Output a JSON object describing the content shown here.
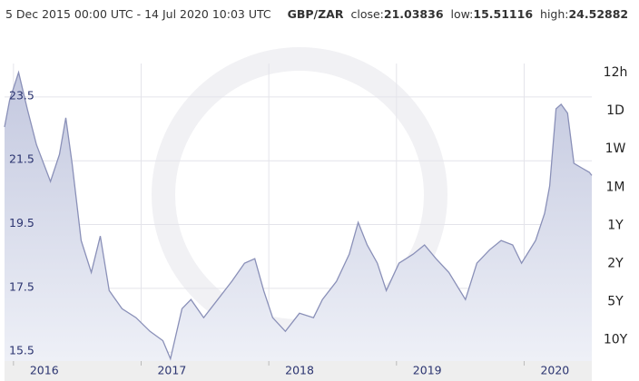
{
  "header": {
    "range": "5 Dec 2015 00:00 UTC - 14 Jul 2020 10:03 UTC",
    "pair": "GBP/ZAR",
    "close_label": "close:",
    "close": "21.03836",
    "low_label": "low:",
    "low": "15.51116",
    "high_label": "high:",
    "high": "24.52882"
  },
  "ui": {
    "range_buttons": [
      "12h",
      "1D",
      "1W",
      "1M",
      "1Y",
      "2Y",
      "5Y",
      "10Y"
    ]
  },
  "chart_data": {
    "type": "area",
    "color": "#8a90b8",
    "grid": true,
    "x": [
      2015.93,
      2015.97,
      2016.04,
      2016.11,
      2016.18,
      2016.29,
      2016.36,
      2016.41,
      2016.46,
      2016.53,
      2016.61,
      2016.68,
      2016.75,
      2016.85,
      2016.96,
      2017.07,
      2017.17,
      2017.23,
      2017.32,
      2017.39,
      2017.49,
      2017.6,
      2017.71,
      2017.81,
      2017.89,
      2017.96,
      2018.03,
      2018.13,
      2018.24,
      2018.35,
      2018.42,
      2018.53,
      2018.63,
      2018.7,
      2018.77,
      2018.85,
      2018.92,
      2019.02,
      2019.13,
      2019.22,
      2019.31,
      2019.41,
      2019.54,
      2019.63,
      2019.73,
      2019.82,
      2019.91,
      2019.98,
      2020.09,
      2020.16,
      2020.2,
      2020.25,
      2020.29,
      2020.34,
      2020.39,
      2020.45,
      2020.51,
      2020.53
    ],
    "values": [
      22.56,
      23.4,
      24.27,
      23.1,
      22.0,
      20.85,
      21.7,
      22.85,
      21.4,
      19.0,
      18.0,
      19.14,
      17.43,
      16.86,
      16.58,
      16.15,
      15.86,
      15.29,
      16.86,
      17.15,
      16.58,
      17.15,
      17.72,
      18.29,
      18.43,
      17.43,
      16.58,
      16.15,
      16.72,
      16.58,
      17.15,
      17.72,
      18.57,
      19.57,
      18.86,
      18.29,
      17.43,
      18.29,
      18.57,
      18.86,
      18.43,
      18.0,
      17.15,
      18.29,
      18.71,
      19.0,
      18.86,
      18.29,
      19.0,
      19.85,
      20.71,
      23.13,
      23.27,
      22.99,
      21.42,
      21.28,
      21.14,
      21.04
    ],
    "xlim": [
      2015.93,
      2020.53
    ],
    "xticks": [
      2016,
      2017,
      2018,
      2019,
      2020
    ],
    "ylim": [
      15.22,
      24.55
    ],
    "yticks": [
      15.5,
      17.5,
      19.5,
      21.5,
      23.5
    ]
  }
}
